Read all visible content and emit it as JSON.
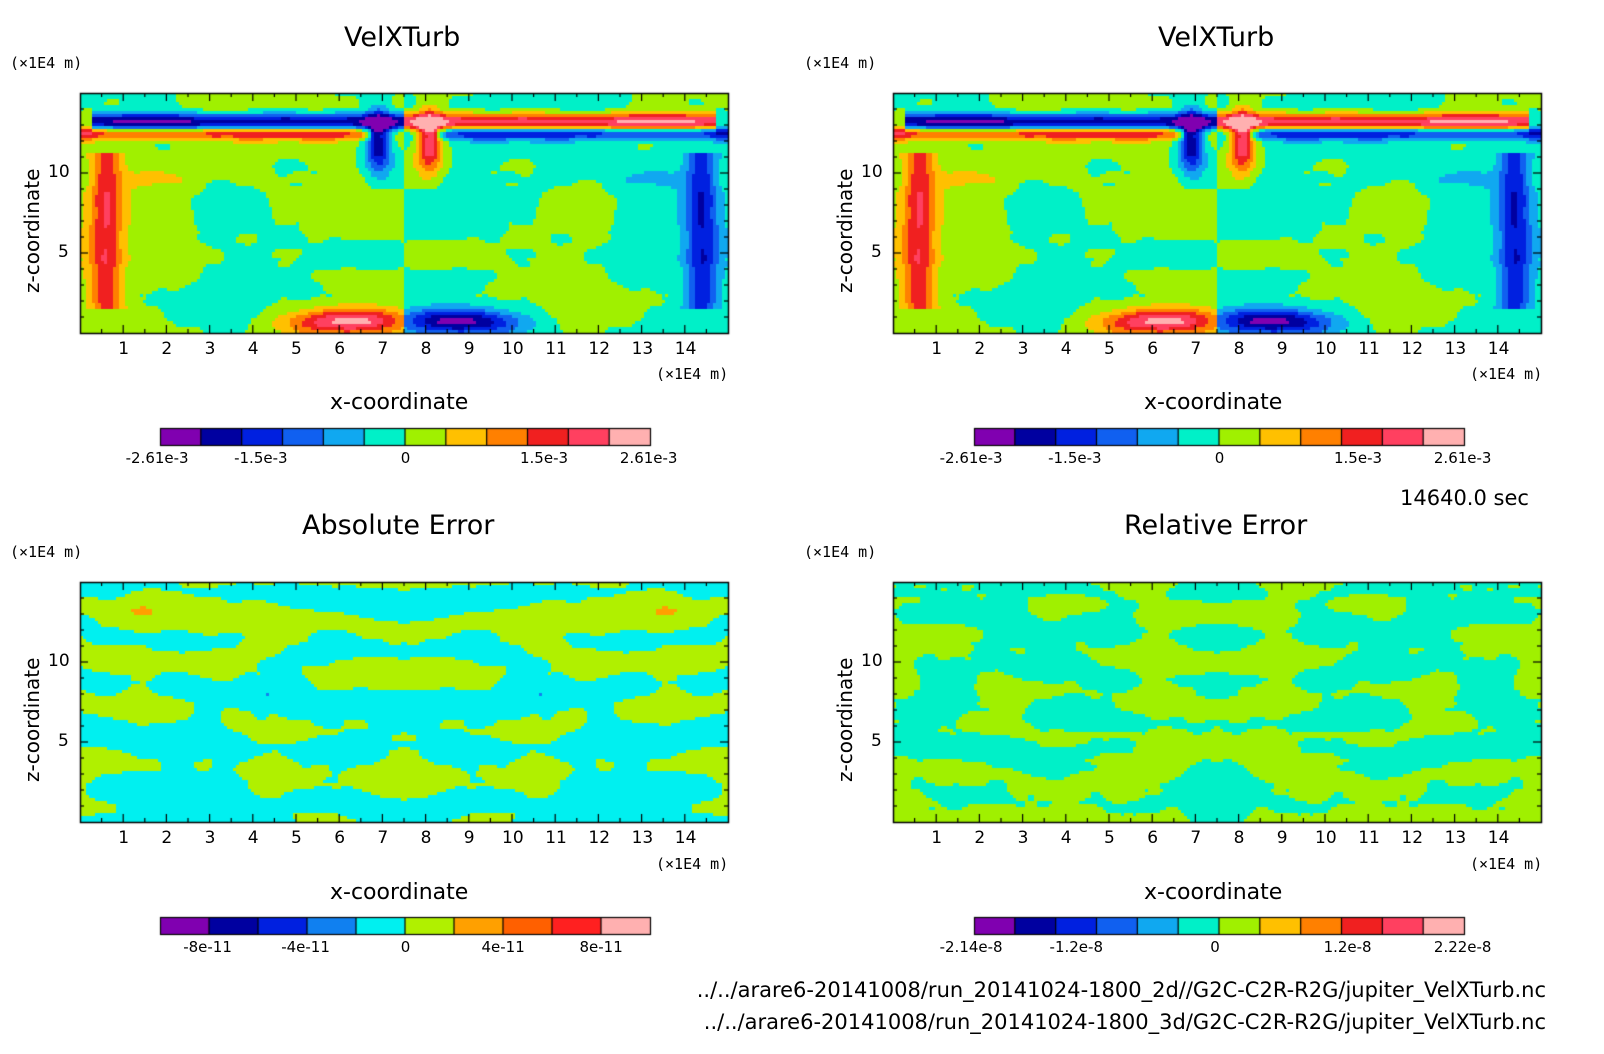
{
  "time_label": "14640.0 sec",
  "files": [
    "../../arare6-20141008/run_20141024-1800_2d//G2C-C2R-R2G/jupiter_VelXTurb.nc",
    "../../arare6-20141008/run_20141024-1800_3d/G2C-C2R-R2G/jupiter_VelXTurb.nc"
  ],
  "chart_data": [
    {
      "type": "heatmap",
      "title": "VelXTurb",
      "xlabel": "x-coordinate",
      "ylabel": "z-coordinate",
      "x_unit": "(×1E4 m)",
      "y_unit": "(×1E4 m)",
      "xlim": [
        0,
        15
      ],
      "ylim": [
        0,
        15
      ],
      "x_ticks": [
        "1",
        "2",
        "3",
        "4",
        "5",
        "6",
        "7",
        "8",
        "9",
        "10",
        "11",
        "12",
        "13",
        "14"
      ],
      "y_ticks": [
        "5",
        "10"
      ],
      "colorbar": {
        "colors": [
          "#8000b0",
          "#0000a0",
          "#0020e0",
          "#1060f0",
          "#10a8f0",
          "#00f0c8",
          "#a0f000",
          "#ffc000",
          "#ff8000",
          "#f02020",
          "#ff4060",
          "#ffb0b0"
        ],
        "tick_labels": [
          "-2.61e-3",
          "-1.5e-3",
          "0",
          "1.5e-3",
          "2.61e-3"
        ],
        "min": -0.00261,
        "max": 0.00261
      }
    },
    {
      "type": "heatmap",
      "title": "VelXTurb",
      "xlabel": "x-coordinate",
      "ylabel": "z-coordinate",
      "x_unit": "(×1E4 m)",
      "y_unit": "(×1E4 m)",
      "xlim": [
        0,
        15
      ],
      "ylim": [
        0,
        15
      ],
      "x_ticks": [
        "1",
        "2",
        "3",
        "4",
        "5",
        "6",
        "7",
        "8",
        "9",
        "10",
        "11",
        "12",
        "13",
        "14"
      ],
      "y_ticks": [
        "5",
        "10"
      ],
      "colorbar": {
        "colors": [
          "#8000b0",
          "#0000a0",
          "#0020e0",
          "#1060f0",
          "#10a8f0",
          "#00f0c8",
          "#a0f000",
          "#ffc000",
          "#ff8000",
          "#f02020",
          "#ff4060",
          "#ffb0b0"
        ],
        "tick_labels": [
          "-2.61e-3",
          "-1.5e-3",
          "0",
          "1.5e-3",
          "2.61e-3"
        ],
        "min": -0.00261,
        "max": 0.00261
      }
    },
    {
      "type": "heatmap",
      "title": "Absolute Error",
      "xlabel": "x-coordinate",
      "ylabel": "z-coordinate",
      "x_unit": "(×1E4 m)",
      "y_unit": "(×1E4 m)",
      "xlim": [
        0,
        15
      ],
      "ylim": [
        0,
        15
      ],
      "x_ticks": [
        "1",
        "2",
        "3",
        "4",
        "5",
        "6",
        "7",
        "8",
        "9",
        "10",
        "11",
        "12",
        "13",
        "14"
      ],
      "y_ticks": [
        "5",
        "10"
      ],
      "colorbar": {
        "colors": [
          "#8000b0",
          "#0000a0",
          "#0020e0",
          "#1080f0",
          "#00f0f0",
          "#b0f000",
          "#ffa000",
          "#ff6000",
          "#ff2020",
          "#ffb0b0"
        ],
        "tick_labels": [
          "-8e-11",
          "-4e-11",
          "0",
          "4e-11",
          "8e-11"
        ],
        "min": -1e-10,
        "max": 1e-10
      }
    },
    {
      "type": "heatmap",
      "title": "Relative Error",
      "xlabel": "x-coordinate",
      "ylabel": "z-coordinate",
      "x_unit": "(×1E4 m)",
      "y_unit": "(×1E4 m)",
      "xlim": [
        0,
        15
      ],
      "ylim": [
        0,
        15
      ],
      "x_ticks": [
        "1",
        "2",
        "3",
        "4",
        "5",
        "6",
        "7",
        "8",
        "9",
        "10",
        "11",
        "12",
        "13",
        "14"
      ],
      "y_ticks": [
        "5",
        "10"
      ],
      "colorbar": {
        "colors": [
          "#8000b0",
          "#0000a0",
          "#0020e0",
          "#1060f0",
          "#10a8f0",
          "#00f0c8",
          "#a0f000",
          "#ffc000",
          "#ff8000",
          "#f02020",
          "#ff4060",
          "#ffb0b0"
        ],
        "tick_labels": [
          "-2.14e-8",
          "-1.2e-8",
          "0",
          "1.2e-8",
          "2.22e-8"
        ],
        "min": -2.14e-08,
        "max": 2.22e-08
      }
    }
  ]
}
